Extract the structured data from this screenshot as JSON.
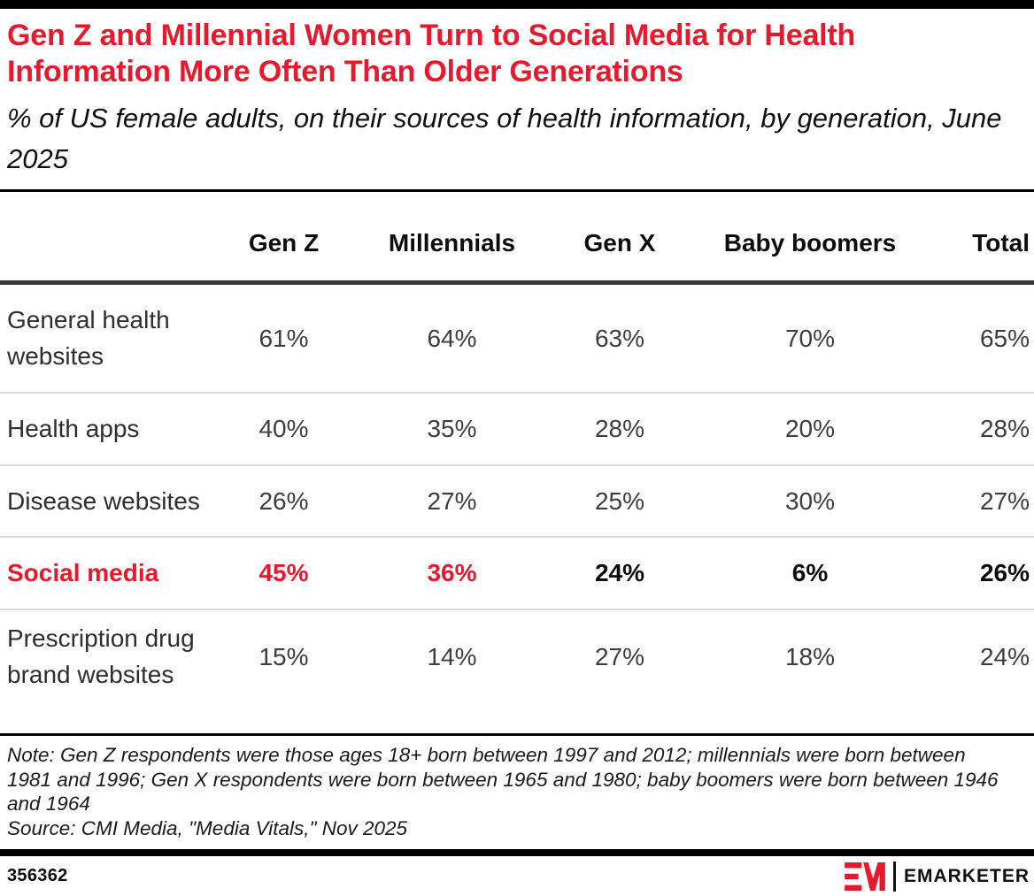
{
  "header": {
    "title": "Gen Z and Millennial Women Turn to Social Media for Health Information More Often Than Older Generations",
    "subtitle": "% of US female adults, on their sources of health information, by generation, June 2025"
  },
  "chart_data": {
    "type": "table",
    "columns": [
      "",
      "Gen Z",
      "Millennials",
      "Gen X",
      "Baby boomers",
      "Total"
    ],
    "rows": [
      {
        "label": "General health websites",
        "values": [
          "61%",
          "64%",
          "63%",
          "70%",
          "65%"
        ],
        "highlight": false,
        "red_cells": []
      },
      {
        "label": "Health apps",
        "values": [
          "40%",
          "35%",
          "28%",
          "20%",
          "28%"
        ],
        "highlight": false,
        "red_cells": []
      },
      {
        "label": "Disease websites",
        "values": [
          "26%",
          "27%",
          "25%",
          "30%",
          "27%"
        ],
        "highlight": false,
        "red_cells": []
      },
      {
        "label": "Social media",
        "values": [
          "45%",
          "36%",
          "24%",
          "6%",
          "26%"
        ],
        "highlight": true,
        "red_cells": [
          0,
          1
        ]
      },
      {
        "label": "Prescription drug brand websites",
        "values": [
          "15%",
          "14%",
          "27%",
          "18%",
          "24%"
        ],
        "highlight": false,
        "red_cells": []
      }
    ],
    "legend_position": "none",
    "grid": "horizontal-row-dividers"
  },
  "note": "Note: Gen Z respondents were those ages 18+ born between 1997 and 2012; millennials were born between 1981 and 1996; Gen X respondents were born between 1965 and 1980; baby boomers were born between 1946 and 1964",
  "source": "Source: CMI Media, \"Media Vitals,\" Nov 2025",
  "footer": {
    "chart_id": "356362",
    "brand_mark": "EM",
    "brand_wordmark": "EMARKETER"
  },
  "colors": {
    "accent_red": "#e8192c",
    "header_rule": "#383838",
    "row_divider": "#dcdcdc",
    "bar_black": "#000000"
  }
}
